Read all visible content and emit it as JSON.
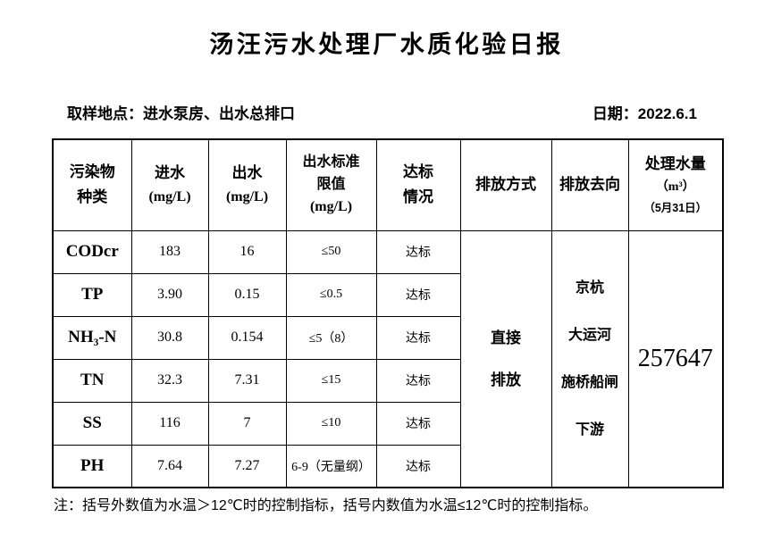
{
  "page": {
    "title": "汤汪污水处理厂水质化验日报",
    "sampling_location": "取样地点：进水泵房、出水总排口",
    "date": "日期：2022.6.1",
    "footnote": "注：括号外数值为水温＞12℃时的控制指标，括号内数值为水温≤12℃时的控制指标。"
  },
  "table": {
    "headers": [
      {
        "id": "pollutant",
        "lines": [
          "污染物",
          "种类"
        ]
      },
      {
        "id": "inflow",
        "lines": [
          "进水",
          "(mg/L)"
        ]
      },
      {
        "id": "outflow",
        "lines": [
          "出水",
          "(mg/L)"
        ]
      },
      {
        "id": "limit",
        "lines": [
          "出水标准",
          "限值",
          "(mg/L)"
        ]
      },
      {
        "id": "status",
        "lines": [
          "达标",
          "情况"
        ]
      },
      {
        "id": "mode",
        "lines": [
          "排放方式"
        ]
      },
      {
        "id": "destination",
        "lines": [
          "排放去向"
        ]
      },
      {
        "id": "volume",
        "lines": [
          "处理水量",
          "（m³）",
          "（5月31日）"
        ]
      }
    ],
    "rows": [
      {
        "pollutant": "CODcr",
        "inflow": "183",
        "outflow": "16",
        "limit": "≤50",
        "status": "达标"
      },
      {
        "pollutant": "TP",
        "inflow": "3.90",
        "outflow": "0.15",
        "limit": "≤0.5",
        "status": "达标"
      },
      {
        "pollutant": "NH₃-N",
        "inflow": "30.8",
        "outflow": "0.154",
        "limit": "≤5（8）",
        "status": "达标"
      },
      {
        "pollutant": "TN",
        "inflow": "32.3",
        "outflow": "7.31",
        "limit": "≤15",
        "status": "达标"
      },
      {
        "pollutant": "SS",
        "inflow": "116",
        "outflow": "7",
        "limit": "≤10",
        "status": "达标"
      },
      {
        "pollutant": "PH",
        "inflow": "7.64",
        "outflow": "7.27",
        "limit": "6-9（无量纲）",
        "status": "达标"
      }
    ],
    "merged": {
      "discharge_mode_lines": [
        "直接",
        "排放"
      ],
      "discharge_destination_lines": [
        "京杭",
        "大运河",
        "施桥船闸",
        "下游"
      ],
      "treated_water_volume": "257647"
    }
  }
}
